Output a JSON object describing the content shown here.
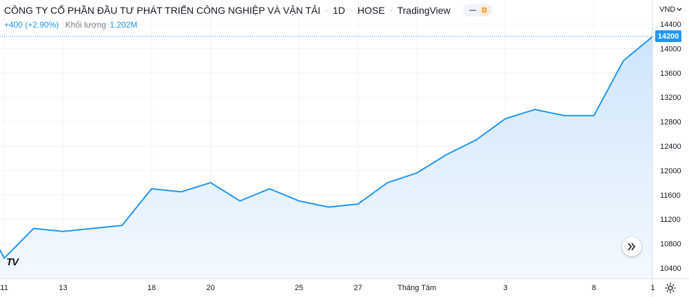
{
  "header": {
    "company": "CÔNG TY CỔ PHẦN ĐẦU TƯ PHÁT TRIỂN CÔNG NGHIỆP VÀ VẬN TẢI",
    "interval": "1D",
    "exchange": "HOSE",
    "source": "TradingView",
    "change": "+400 (+2.90%)",
    "volume_label": "Khối lượng",
    "volume_value": "1.202M",
    "pill_dot_label": "D"
  },
  "currency_label": "VND",
  "currency_icon": "chevron-down-icon",
  "last_price_label": "14200",
  "logo_text": "TV",
  "icons": {
    "scroll": "double-chevron-right-icon",
    "settings": "gear-icon"
  },
  "colors": {
    "line": "#2196f3",
    "area_top": "#cfe5fb",
    "area_bottom": "#f3f9ff",
    "price_tag": "#2196f3",
    "grid": "#f0f3fa"
  },
  "chart_data": {
    "type": "area",
    "ylabel": "",
    "xlabel": "",
    "ylim": [
      10200,
      14500
    ],
    "y_ticks": [
      10400,
      10800,
      11200,
      11600,
      12000,
      12400,
      12800,
      13200,
      13600,
      14000,
      14400
    ],
    "x_tick_labels": [
      "11",
      "13",
      "18",
      "20",
      "25",
      "27",
      "Tháng Tám",
      "3",
      "8",
      "1"
    ],
    "x_tick_index": [
      0,
      2,
      5,
      7,
      10,
      12,
      14,
      17,
      20,
      22
    ],
    "last_value": 14200,
    "grid": true,
    "series": [
      {
        "values": [
          10560,
          11050,
          11000,
          11050,
          11100,
          11700,
          11650,
          11800,
          11500,
          11700,
          11500,
          11400,
          11450,
          11800,
          11960,
          12260,
          12500,
          12850,
          13000,
          12900,
          12900,
          13800,
          14200
        ]
      }
    ]
  }
}
